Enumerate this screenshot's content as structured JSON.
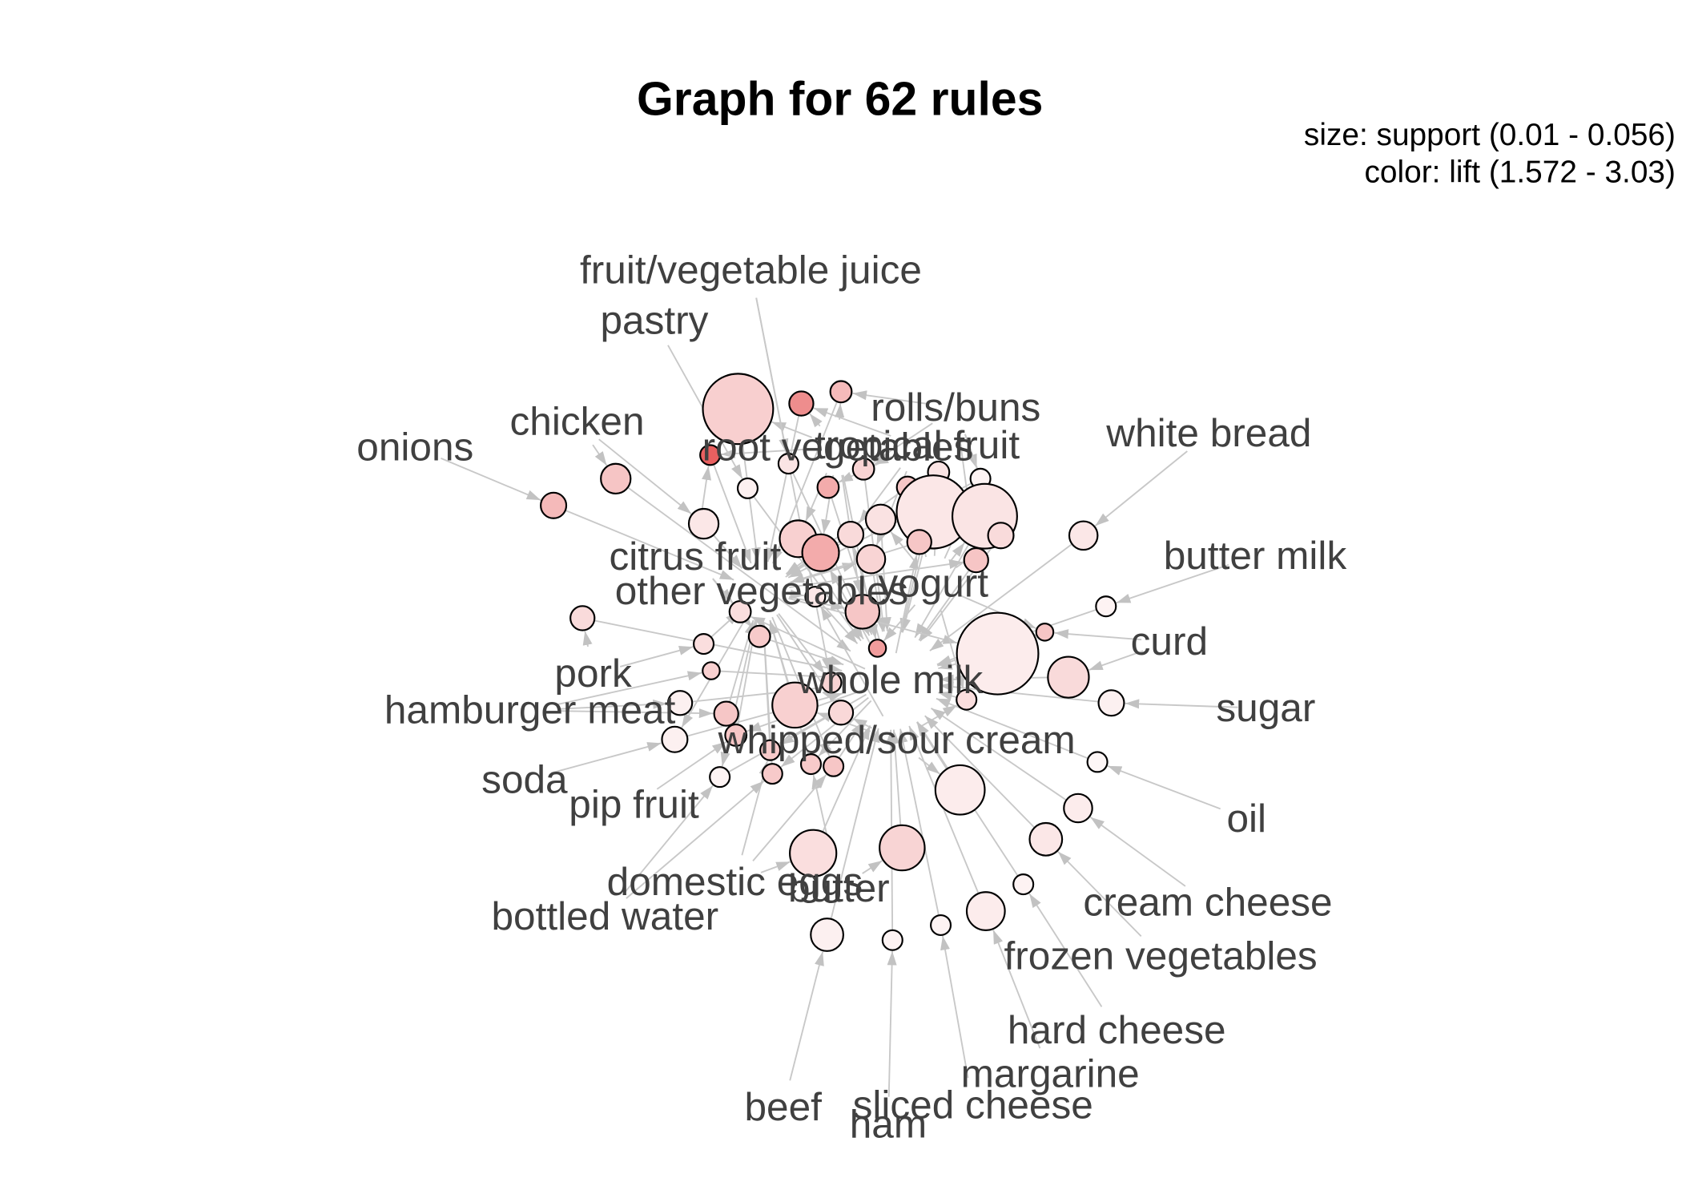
{
  "title": "Graph for 62 rules",
  "legend": {
    "size": "size: support (0.01 - 0.056)",
    "color": "color: lift (1.572 - 3.03)"
  },
  "scales": {
    "support_range": [
      0.01,
      0.056
    ],
    "lift_range": [
      1.572,
      3.03
    ]
  },
  "colors": {
    "lift_low": "#fdf6f6",
    "lift_high": "#e86060",
    "edge": "#c8c8c8",
    "arrow": "#c2c2c2",
    "label": "#404040",
    "node_stroke": "#000000"
  },
  "items": [
    "fruit/vegetable juice",
    "pastry",
    "rolls/buns",
    "chicken",
    "onions",
    "root vegetables",
    "tropical fruit",
    "white bread",
    "butter milk",
    "citrus fruit",
    "other vegetables",
    "yogurt",
    "curd",
    "pork",
    "whole milk",
    "hamburger meat",
    "sugar",
    "whipped/sour cream",
    "soda",
    "pip fruit",
    "oil",
    "domestic eggs",
    "butter",
    "cream cheese",
    "bottled water",
    "frozen vegetables",
    "hard cheese",
    "margarine",
    "beef",
    "sliced cheese",
    "ham"
  ],
  "rules": [
    {
      "support": 0.048,
      "lift": 1.951
    },
    {
      "support": 0.015,
      "lift": 2.593
    },
    {
      "support": 0.013,
      "lift": 2.155
    },
    {
      "support": 0.012,
      "lift": 3.03
    },
    {
      "support": 0.012,
      "lift": 1.747
    },
    {
      "support": 0.012,
      "lift": 1.63
    },
    {
      "support": 0.019,
      "lift": 2.053
    },
    {
      "support": 0.016,
      "lift": 2.155
    },
    {
      "support": 0.019,
      "lift": 1.718
    },
    {
      "support": 0.013,
      "lift": 2.301
    },
    {
      "support": 0.013,
      "lift": 1.907
    },
    {
      "support": 0.013,
      "lift": 2.039
    },
    {
      "support": 0.013,
      "lift": 1.747
    },
    {
      "support": 0.012,
      "lift": 1.601
    },
    {
      "support": 0.05,
      "lift": 1.718
    },
    {
      "support": 0.044,
      "lift": 1.747
    },
    {
      "support": 0.016,
      "lift": 1.834
    },
    {
      "support": 0.019,
      "lift": 1.762
    },
    {
      "support": 0.016,
      "lift": 1.849
    },
    {
      "support": 0.024,
      "lift": 1.937
    },
    {
      "support": 0.024,
      "lift": 2.301
    },
    {
      "support": 0.018,
      "lift": 1.907
    },
    {
      "support": 0.015,
      "lift": 2.039
    },
    {
      "support": 0.015,
      "lift": 2.053
    },
    {
      "support": 0.018,
      "lift": 1.718
    },
    {
      "support": 0.012,
      "lift": 1.601
    },
    {
      "support": 0.022,
      "lift": 2.039
    },
    {
      "support": 0.012,
      "lift": 1.718
    },
    {
      "support": 0.013,
      "lift": 1.805
    },
    {
      "support": 0.013,
      "lift": 1.995
    },
    {
      "support": 0.012,
      "lift": 1.805
    },
    {
      "support": 0.01,
      "lift": 1.937
    },
    {
      "support": 0.015,
      "lift": 1.834
    },
    {
      "support": 0.01,
      "lift": 2.447
    },
    {
      "support": 0.056,
      "lift": 1.674
    },
    {
      "support": 0.01,
      "lift": 2.053
    },
    {
      "support": 0.027,
      "lift": 1.849
    },
    {
      "support": 0.016,
      "lift": 1.63
    },
    {
      "support": 0.012,
      "lift": 1.805
    },
    {
      "support": 0.015,
      "lift": 1.864
    },
    {
      "support": 0.03,
      "lift": 1.937
    },
    {
      "support": 0.015,
      "lift": 2.039
    },
    {
      "support": 0.015,
      "lift": 1.63
    },
    {
      "support": 0.016,
      "lift": 1.63
    },
    {
      "support": 0.013,
      "lift": 2.039
    },
    {
      "support": 0.012,
      "lift": 1.995
    },
    {
      "support": 0.012,
      "lift": 1.995
    },
    {
      "support": 0.012,
      "lift": 2.039
    },
    {
      "support": 0.012,
      "lift": 1.995
    },
    {
      "support": 0.012,
      "lift": 1.601
    },
    {
      "support": 0.012,
      "lift": 1.572
    },
    {
      "support": 0.033,
      "lift": 1.674
    },
    {
      "support": 0.018,
      "lift": 1.674
    },
    {
      "support": 0.021,
      "lift": 1.718
    },
    {
      "support": 0.031,
      "lift": 1.805
    },
    {
      "support": 0.03,
      "lift": 1.907
    },
    {
      "support": 0.012,
      "lift": 1.601
    },
    {
      "support": 0.025,
      "lift": 1.674
    },
    {
      "support": 0.021,
      "lift": 1.63
    },
    {
      "support": 0.012,
      "lift": 1.601
    },
    {
      "support": 0.012,
      "lift": 1.601
    },
    {
      "support": 0.012,
      "lift": 1.907
    }
  ]
}
